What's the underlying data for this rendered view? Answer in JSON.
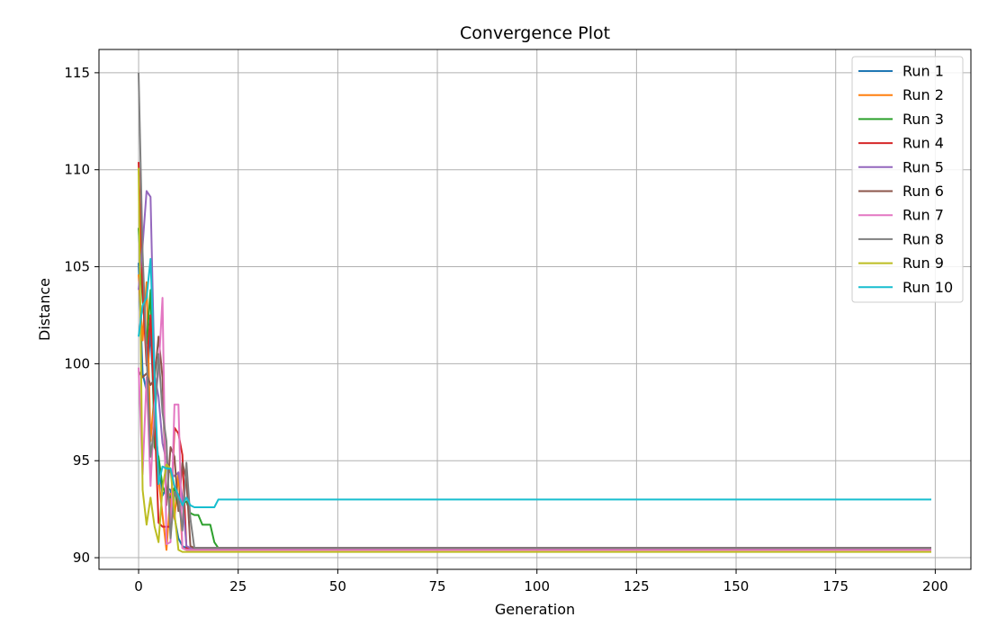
{
  "chart_data": {
    "type": "line",
    "title": "Convergence Plot",
    "xlabel": "Generation",
    "ylabel": "Distance",
    "xlim": [
      -9.95,
      208.95
    ],
    "ylim": [
      89.4,
      116.2
    ],
    "xticks": [
      0,
      25,
      50,
      75,
      100,
      125,
      150,
      175,
      200
    ],
    "yticks": [
      90,
      95,
      100,
      105,
      110,
      115
    ],
    "grid": true,
    "legend_position": "top-right",
    "series": [
      {
        "name": "Run 1",
        "color": "#1f77b4",
        "points": [
          [
            0,
            105.2
          ],
          [
            1,
            99.5
          ],
          [
            2,
            98.6
          ],
          [
            3,
            101.8
          ],
          [
            4,
            97.0
          ],
          [
            5,
            95.0
          ],
          [
            6,
            93.2
          ],
          [
            7,
            93.6
          ],
          [
            8,
            93.5
          ],
          [
            9,
            92.1
          ],
          [
            10,
            91.0
          ],
          [
            11,
            90.6
          ],
          [
            12,
            90.5
          ],
          [
            199,
            90.5
          ]
        ]
      },
      {
        "name": "Run 2",
        "color": "#ff7f0e",
        "points": [
          [
            0,
            104.6
          ],
          [
            1,
            101.2
          ],
          [
            2,
            104.2
          ],
          [
            3,
            96.0
          ],
          [
            4,
            98.5
          ],
          [
            5,
            94.1
          ],
          [
            6,
            92.2
          ],
          [
            7,
            90.4
          ],
          [
            8,
            93.3
          ],
          [
            9,
            92.0
          ],
          [
            10,
            94.4
          ],
          [
            11,
            90.5
          ],
          [
            12,
            90.4
          ],
          [
            199,
            90.4
          ]
        ]
      },
      {
        "name": "Run 3",
        "color": "#2ca02c",
        "points": [
          [
            0,
            107.0
          ],
          [
            1,
            103.3
          ],
          [
            2,
            101.0
          ],
          [
            3,
            103.8
          ],
          [
            4,
            95.7
          ],
          [
            5,
            95.2
          ],
          [
            6,
            93.7
          ],
          [
            7,
            93.2
          ],
          [
            8,
            93.1
          ],
          [
            9,
            93.6
          ],
          [
            10,
            92.5
          ],
          [
            11,
            92.8
          ],
          [
            12,
            92.9
          ],
          [
            13,
            92.3
          ],
          [
            14,
            92.2
          ],
          [
            15,
            92.2
          ],
          [
            16,
            91.7
          ],
          [
            17,
            91.7
          ],
          [
            18,
            91.7
          ],
          [
            19,
            90.8
          ],
          [
            20,
            90.5
          ],
          [
            199,
            90.5
          ]
        ]
      },
      {
        "name": "Run 4",
        "color": "#d62728",
        "points": [
          [
            0,
            110.4
          ],
          [
            1,
            103.8
          ],
          [
            2,
            99.9
          ],
          [
            3,
            102.5
          ],
          [
            4,
            97.2
          ],
          [
            5,
            91.8
          ],
          [
            6,
            91.6
          ],
          [
            7,
            91.6
          ],
          [
            8,
            91.6
          ],
          [
            9,
            96.7
          ],
          [
            10,
            96.4
          ],
          [
            11,
            95.3
          ],
          [
            12,
            90.5
          ],
          [
            199,
            90.5
          ]
        ]
      },
      {
        "name": "Run 5",
        "color": "#9467bd",
        "points": [
          [
            0,
            103.8
          ],
          [
            1,
            106.1
          ],
          [
            2,
            108.9
          ],
          [
            3,
            108.6
          ],
          [
            4,
            99.4
          ],
          [
            5,
            98.3
          ],
          [
            6,
            95.9
          ],
          [
            7,
            95.0
          ],
          [
            8,
            94.4
          ],
          [
            9,
            94.2
          ],
          [
            10,
            94.4
          ],
          [
            11,
            93.1
          ],
          [
            12,
            90.6
          ],
          [
            13,
            90.5
          ],
          [
            199,
            90.5
          ]
        ]
      },
      {
        "name": "Run 6",
        "color": "#8c564b",
        "points": [
          [
            0,
            99.6
          ],
          [
            1,
            99.3
          ],
          [
            2,
            99.5
          ],
          [
            3,
            98.9
          ],
          [
            4,
            99.2
          ],
          [
            5,
            101.4
          ],
          [
            6,
            99.3
          ],
          [
            7,
            92.7
          ],
          [
            8,
            95.7
          ],
          [
            9,
            95.2
          ],
          [
            10,
            92.4
          ],
          [
            11,
            94.9
          ],
          [
            12,
            94.0
          ],
          [
            13,
            90.6
          ],
          [
            14,
            90.5
          ],
          [
            199,
            90.5
          ]
        ]
      },
      {
        "name": "Run 7",
        "color": "#e377c2",
        "points": [
          [
            0,
            99.8
          ],
          [
            1,
            94.3
          ],
          [
            2,
            99.3
          ],
          [
            3,
            93.7
          ],
          [
            4,
            97.9
          ],
          [
            5,
            99.6
          ],
          [
            6,
            103.4
          ],
          [
            7,
            90.7
          ],
          [
            8,
            90.8
          ],
          [
            9,
            97.9
          ],
          [
            10,
            97.9
          ],
          [
            11,
            90.5
          ],
          [
            12,
            90.4
          ],
          [
            199,
            90.4
          ]
        ]
      },
      {
        "name": "Run 8",
        "color": "#7f7f7f",
        "points": [
          [
            0,
            115.0
          ],
          [
            1,
            105.7
          ],
          [
            2,
            100.5
          ],
          [
            3,
            95.2
          ],
          [
            4,
            96.8
          ],
          [
            5,
            100.5
          ],
          [
            6,
            97.5
          ],
          [
            7,
            96.0
          ],
          [
            8,
            91.0
          ],
          [
            9,
            93.4
          ],
          [
            10,
            93.0
          ],
          [
            11,
            91.4
          ],
          [
            12,
            94.9
          ],
          [
            13,
            92.0
          ],
          [
            14,
            90.5
          ],
          [
            199,
            90.5
          ]
        ]
      },
      {
        "name": "Run 9",
        "color": "#bcbd22",
        "points": [
          [
            0,
            110.1
          ],
          [
            1,
            93.5
          ],
          [
            2,
            91.7
          ],
          [
            3,
            93.1
          ],
          [
            4,
            91.6
          ],
          [
            5,
            90.8
          ],
          [
            6,
            93.6
          ],
          [
            7,
            94.8
          ],
          [
            8,
            94.6
          ],
          [
            9,
            92.3
          ],
          [
            10,
            90.4
          ],
          [
            11,
            90.3
          ],
          [
            199,
            90.3
          ]
        ]
      },
      {
        "name": "Run 10",
        "color": "#17becf",
        "points": [
          [
            0,
            101.4
          ],
          [
            1,
            103.0
          ],
          [
            2,
            103.4
          ],
          [
            3,
            105.4
          ],
          [
            4,
            99.3
          ],
          [
            5,
            93.8
          ],
          [
            6,
            94.7
          ],
          [
            7,
            94.6
          ],
          [
            8,
            94.6
          ],
          [
            9,
            93.7
          ],
          [
            10,
            93.2
          ],
          [
            11,
            92.7
          ],
          [
            12,
            93.1
          ],
          [
            13,
            92.7
          ],
          [
            14,
            92.6
          ],
          [
            15,
            92.6
          ],
          [
            16,
            92.6
          ],
          [
            17,
            92.6
          ],
          [
            18,
            92.6
          ],
          [
            19,
            92.6
          ],
          [
            20,
            93.0
          ],
          [
            199,
            93.0
          ]
        ]
      }
    ]
  }
}
